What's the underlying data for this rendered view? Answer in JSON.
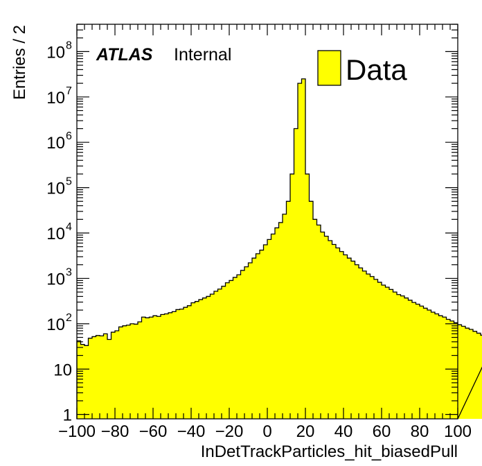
{
  "chart_data": {
    "type": "bar",
    "histogram": true,
    "title": "",
    "xlabel": "InDetTrackParticles_hit_biasedPull",
    "ylabel": "Entries / 2",
    "xlim": [
      -100,
      100
    ],
    "ylim": [
      0.8,
      400000000
    ],
    "yscale": "log",
    "bin_width": 2,
    "grid": false,
    "x_ticks": [
      -100,
      -80,
      -60,
      -40,
      -20,
      0,
      20,
      40,
      60,
      80,
      100
    ],
    "x_tick_labels": [
      "−100",
      "−80",
      "−60",
      "−40",
      "−20",
      "0",
      "20",
      "40",
      "60",
      "80",
      "100"
    ],
    "y_ticks": [
      1,
      10,
      100,
      1000,
      10000,
      100000,
      1000000,
      10000000,
      100000000
    ],
    "y_tick_labels": [
      {
        "base": "1",
        "exp": ""
      },
      {
        "base": "10",
        "exp": ""
      },
      {
        "base": "10",
        "exp": "2"
      },
      {
        "base": "10",
        "exp": "3"
      },
      {
        "base": "10",
        "exp": "4"
      },
      {
        "base": "10",
        "exp": "5"
      },
      {
        "base": "10",
        "exp": "6"
      },
      {
        "base": "10",
        "exp": "7"
      },
      {
        "base": "10",
        "exp": "8"
      }
    ],
    "experiment_label": "ATLAS",
    "status_label": "Internal",
    "legend": {
      "position": "top-right",
      "entries": [
        {
          "label": "Data",
          "color": "#ffff00"
        }
      ]
    },
    "series": [
      {
        "name": "Data",
        "color": "#ffff00",
        "edge_color": "#000000",
        "values": [
          42,
          35,
          33,
          48,
          52,
          55,
          54,
          60,
          45,
          65,
          70,
          85,
          90,
          93,
          100,
          98,
          110,
          140,
          135,
          140,
          150,
          145,
          160,
          165,
          175,
          185,
          205,
          210,
          230,
          250,
          290,
          310,
          340,
          370,
          400,
          450,
          520,
          580,
          670,
          800,
          900,
          1050,
          1200,
          1500,
          1800,
          2200,
          2800,
          3500,
          4200,
          5500,
          7200,
          9500,
          13000,
          17000,
          26000,
          50000,
          200000,
          2000000,
          20000000,
          25000000,
          200000,
          50000,
          20000,
          15000,
          10500,
          8500,
          6800,
          5600,
          4700,
          3900,
          3300,
          2800,
          2400,
          2000,
          1700,
          1450,
          1250,
          1100,
          950,
          820,
          710,
          640,
          570,
          500,
          440,
          410,
          370,
          330,
          295,
          270,
          245,
          220,
          200,
          180,
          165,
          150,
          140,
          125,
          115,
          105,
          95,
          88,
          80,
          75,
          68,
          62,
          56,
          48,
          35,
          48
        ]
      }
    ]
  }
}
